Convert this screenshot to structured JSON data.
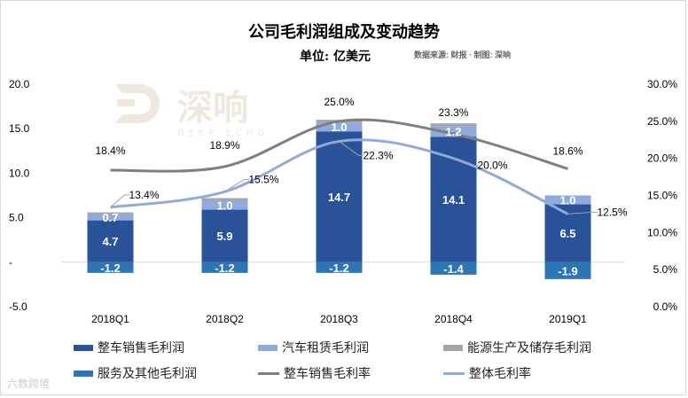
{
  "chart_data": {
    "type": "bar",
    "title": "公司毛利润组成及变动趋势",
    "subtitle": "单位: 亿美元",
    "source": "数据来源: 财报 · 制图: 深响",
    "categories": [
      "2018Q1",
      "2018Q2",
      "2018Q3",
      "2018Q4",
      "2019Q1"
    ],
    "left_axis": {
      "ylim": [
        -5,
        20
      ],
      "ticks": [
        "-5.0",
        "-",
        "5.0",
        "10.0",
        "15.0",
        "20.0"
      ],
      "tick_values": [
        -5,
        0,
        5,
        10,
        15,
        20
      ]
    },
    "right_axis": {
      "ylim": [
        0,
        30
      ],
      "ticks": [
        "0.0%",
        "5.0%",
        "10.0%",
        "15.0%",
        "20.0%",
        "25.0%",
        "30.0%"
      ],
      "tick_values": [
        0,
        5,
        10,
        15,
        20,
        25,
        30
      ]
    },
    "bar_series": [
      {
        "name": "整车销售毛利润",
        "color": "#2a5298",
        "values": [
          4.7,
          5.9,
          14.7,
          14.1,
          6.5
        ],
        "labels": [
          "4.7",
          "5.9",
          "14.7",
          "14.1",
          "6.5"
        ]
      },
      {
        "name": "汽车租赁毛利润",
        "color": "#8faadc",
        "values": [
          0.7,
          1.0,
          1.0,
          1.2,
          1.0
        ],
        "labels": [
          "0.7",
          "1.0",
          "1.0",
          "1.2",
          "1.0"
        ]
      },
      {
        "name": "能源生产及储存毛利润",
        "color": "#a5a5a5",
        "values": [
          0.2,
          0.3,
          0.3,
          0.3,
          0.0
        ],
        "labels": []
      },
      {
        "name": "服务及其他毛利润",
        "color": "#2e75b6",
        "values": [
          -1.2,
          -1.2,
          -1.2,
          -1.4,
          -1.9
        ],
        "labels": [
          "-1.2",
          "-1.2",
          "-1.2",
          "-1.4",
          "-1.9"
        ]
      }
    ],
    "line_series": [
      {
        "name": "整车销售毛利率",
        "color": "#7f7f7f",
        "axis": "right",
        "values": [
          18.4,
          18.9,
          25.0,
          23.3,
          18.6
        ],
        "labels": [
          "18.4%",
          "18.9%",
          "25.0%",
          "23.3%",
          "18.6%"
        ]
      },
      {
        "name": "整体毛利率",
        "color": "#8faadc",
        "axis": "right",
        "values": [
          13.4,
          15.5,
          22.3,
          20.0,
          12.5
        ],
        "labels": [
          "13.4%",
          "15.5%",
          "22.3%",
          "20.0%",
          "12.5%"
        ]
      }
    ],
    "legend_position": "bottom",
    "grid": false
  },
  "watermark": "DEEP ECHO 深响",
  "corner_watermark": "六数跨境"
}
